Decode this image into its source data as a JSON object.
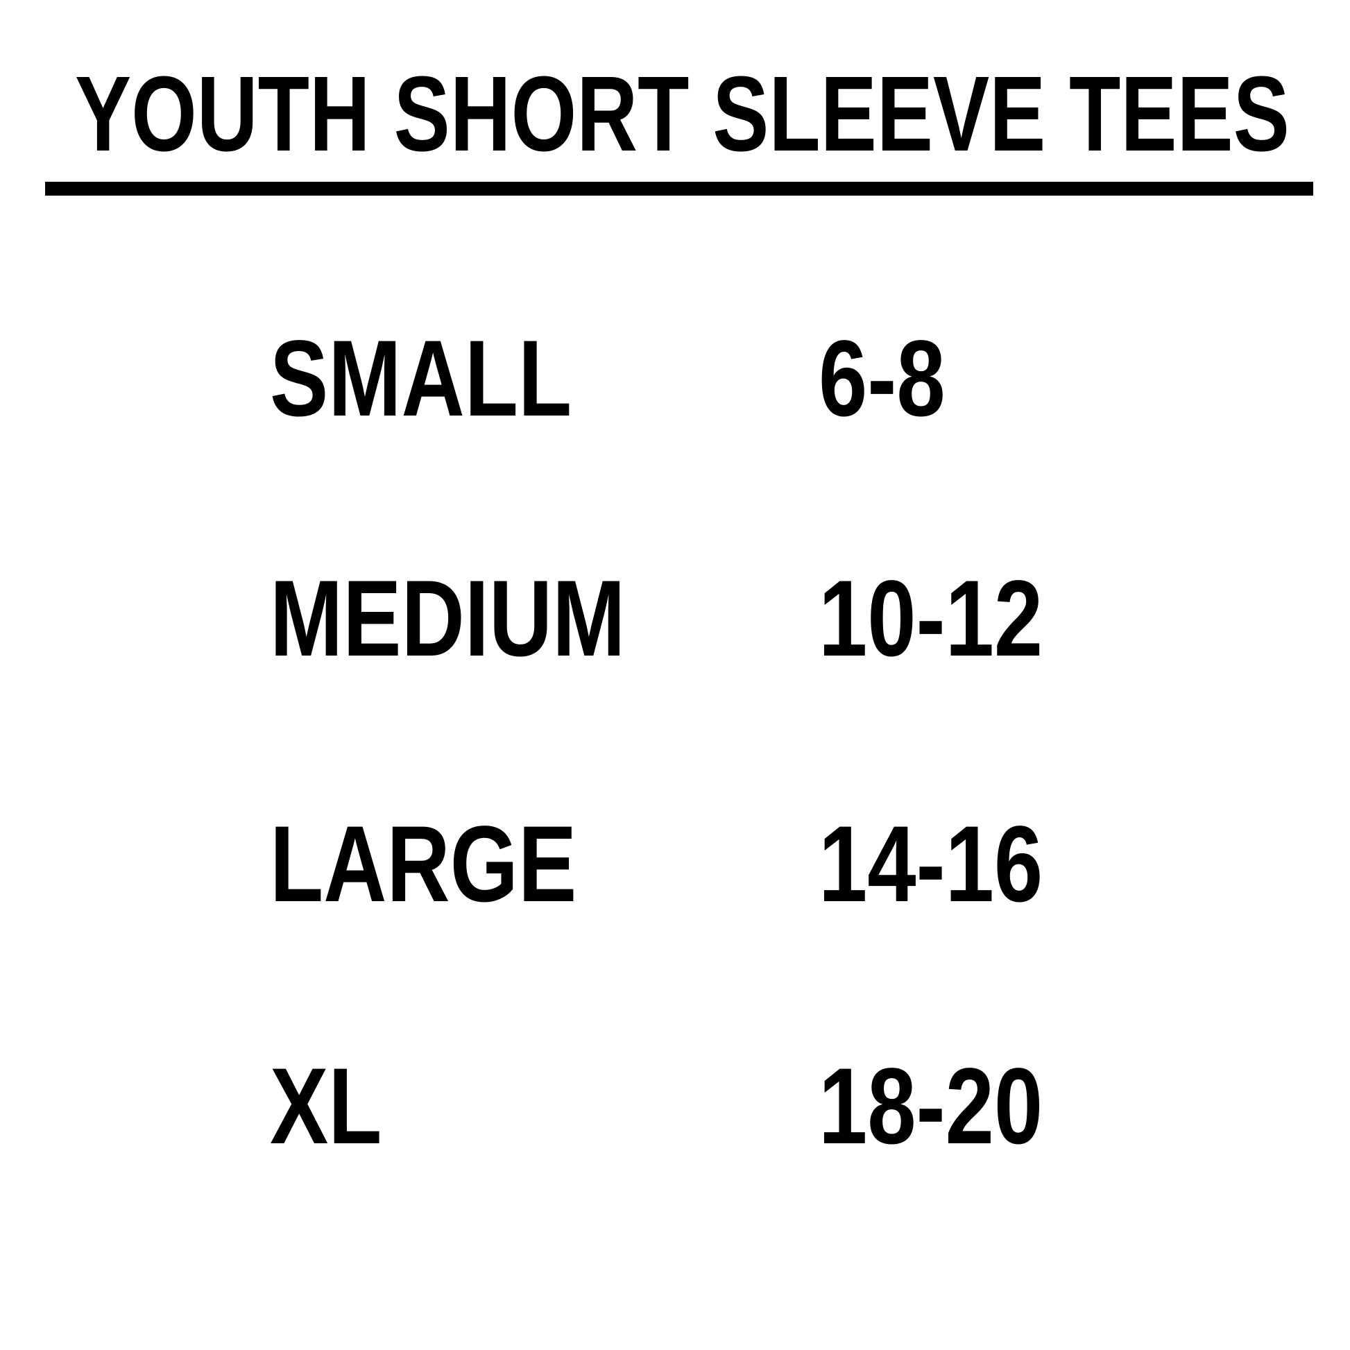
{
  "page": {
    "title": "YOUTH SHORT SLEEVE TEES"
  },
  "rows": [
    {
      "size": "SMALL",
      "range": "6-8"
    },
    {
      "size": "MEDIUM",
      "range": "10-12"
    },
    {
      "size": "LARGE",
      "range": "14-16"
    },
    {
      "size": "XL",
      "range": "18-20"
    }
  ],
  "colors": {
    "text": "#000000",
    "background": "#ffffff",
    "rule": "#000000"
  },
  "chart_data": {
    "type": "table",
    "title": "YOUTH SHORT SLEEVE TEES",
    "rows": [
      [
        "SMALL",
        "6-8"
      ],
      [
        "MEDIUM",
        "10-12"
      ],
      [
        "LARGE",
        "14-16"
      ],
      [
        "XL",
        "18-20"
      ]
    ],
    "layout": {
      "header_underline": true,
      "columns_alignment": "left",
      "grid": false
    }
  }
}
